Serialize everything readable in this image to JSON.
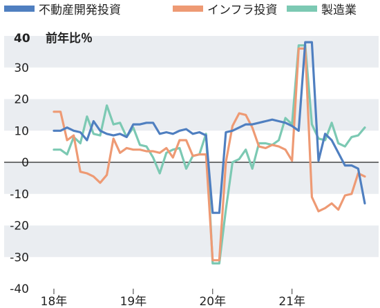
{
  "chart_data": {
    "type": "line",
    "y_unit_label": "前年比％",
    "ylim": [
      -40,
      40
    ],
    "y_ticks": [
      "40",
      "30",
      "20",
      "10",
      "0",
      "-10",
      "-20",
      "-30",
      "-40"
    ],
    "y_tick_values": [
      40,
      30,
      20,
      10,
      0,
      -10,
      -20,
      -30,
      -40
    ],
    "x_ticks": [
      "18年",
      "19年",
      "20年",
      "21年"
    ],
    "x_tick_index": [
      0,
      12,
      24,
      36
    ],
    "n_points": 48,
    "grid": "alternating horizontal bands",
    "legend_position": "top",
    "series": [
      {
        "name": "不動産開発投資",
        "color": "#4f7fc0",
        "values": [
          10,
          10,
          11,
          10,
          9.5,
          7,
          13,
          10,
          9,
          8.5,
          9,
          8,
          12,
          12,
          12.5,
          12.5,
          9,
          9.5,
          9,
          10,
          10.5,
          9,
          9.5,
          8.5,
          -16,
          -16,
          9.5,
          10,
          11,
          12,
          12,
          12.5,
          13,
          13.5,
          13,
          12.5,
          11.5,
          10,
          38,
          38,
          0.5,
          9,
          7,
          3,
          -1,
          -1,
          -2,
          -13
        ]
      },
      {
        "name": "インフラ投資",
        "color": "#ee9a74",
        "values": [
          16,
          16,
          7,
          8.5,
          -3,
          -3.5,
          -4.5,
          -6.5,
          -4,
          7.5,
          3,
          4.5,
          4,
          4,
          3.5,
          3.5,
          3,
          4.5,
          1.5,
          7,
          7,
          2,
          2.5,
          2.5,
          -31,
          -31,
          0,
          11.5,
          15.5,
          15,
          11,
          5,
          4.5,
          5.5,
          5,
          4,
          0.5,
          36,
          36,
          -11,
          -15.5,
          -14.5,
          -13,
          -15,
          -10.5,
          -10,
          -3.5,
          -4.5
        ]
      },
      {
        "name": "製造業",
        "color": "#7cc9b3",
        "values": [
          4,
          4,
          2.5,
          8,
          6,
          14.5,
          9,
          8.5,
          18,
          12,
          12.5,
          8,
          11,
          5.5,
          5,
          1.5,
          -3.5,
          3,
          4,
          4.5,
          -2,
          2,
          2.5,
          9,
          -32,
          -32,
          -15,
          0,
          1,
          4,
          -2,
          6,
          6,
          5.5,
          7,
          14,
          12,
          37,
          37,
          12,
          7.5,
          7,
          12.5,
          6,
          5,
          8,
          8.5,
          11
        ]
      }
    ]
  }
}
